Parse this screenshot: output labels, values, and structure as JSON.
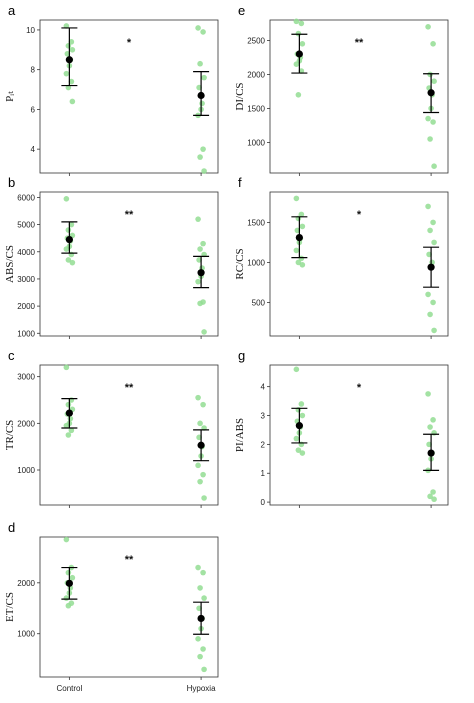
{
  "colors": {
    "point": "#93dd93",
    "mean": "#000000",
    "errorbar": "#000000",
    "frame": "#333333"
  },
  "chart_data": [
    {
      "type": "scatter",
      "panel": "a",
      "ylabel": "Pᵢₜ",
      "categories": [
        "Control",
        "Hypoxia"
      ],
      "ylim": [
        2.8,
        10.5
      ],
      "yticks": [
        4,
        6,
        8,
        10
      ],
      "significance": "*",
      "points": {
        "Control": [
          10.2,
          9.4,
          9.2,
          9.0,
          8.8,
          8.5,
          8.2,
          7.8,
          7.4,
          7.1,
          6.4
        ],
        "Hypoxia": [
          10.1,
          9.9,
          8.3,
          7.6,
          7.1,
          6.3,
          6.0,
          5.7,
          4.0,
          3.6,
          2.9
        ]
      },
      "mean": {
        "Control": 8.5,
        "Hypoxia": 6.7
      },
      "error": {
        "Control": [
          7.2,
          10.1
        ],
        "Hypoxia": [
          5.7,
          7.9
        ]
      }
    },
    {
      "type": "scatter",
      "panel": "b",
      "ylabel": "ABS/CS",
      "categories": [
        "Control",
        "Hypoxia"
      ],
      "ylim": [
        900,
        6200
      ],
      "yticks": [
        1000,
        2000,
        3000,
        4000,
        5000,
        6000
      ],
      "significance": "**",
      "points": {
        "Control": [
          5950,
          5000,
          4800,
          4600,
          4500,
          4400,
          4200,
          4100,
          3900,
          3700,
          3600
        ],
        "Hypoxia": [
          5200,
          4300,
          4100,
          3900,
          3700,
          3400,
          3100,
          2900,
          2150,
          2100,
          1050
        ]
      },
      "mean": {
        "Control": 4450,
        "Hypoxia": 3230
      },
      "error": {
        "Control": [
          3950,
          5100
        ],
        "Hypoxia": [
          2680,
          3830
        ]
      }
    },
    {
      "type": "scatter",
      "panel": "c",
      "ylabel": "TR/CS",
      "categories": [
        "Control",
        "Hypoxia"
      ],
      "ylim": [
        250,
        3250
      ],
      "yticks": [
        1000,
        2000,
        3000
      ],
      "significance": "**",
      "points": {
        "Control": [
          3200,
          2500,
          2400,
          2300,
          2200,
          2100,
          2000,
          1950,
          1850,
          1750
        ],
        "Hypoxia": [
          2550,
          2400,
          2000,
          1900,
          1700,
          1500,
          1300,
          1100,
          900,
          750,
          400
        ]
      },
      "mean": {
        "Control": 2220,
        "Hypoxia": 1530
      },
      "error": {
        "Control": [
          1900,
          2530
        ],
        "Hypoxia": [
          1200,
          1860
        ]
      }
    },
    {
      "type": "scatter",
      "panel": "d",
      "ylabel": "ET/CS",
      "categories": [
        "Control",
        "Hypoxia"
      ],
      "ylim": [
        150,
        2900
      ],
      "yticks": [
        1000,
        2000
      ],
      "significance": "**",
      "points": {
        "Control": [
          2850,
          2300,
          2200,
          2100,
          2000,
          1900,
          1800,
          1700,
          1600,
          1550
        ],
        "Hypoxia": [
          2300,
          2200,
          1900,
          1700,
          1500,
          1300,
          1100,
          900,
          700,
          550,
          300
        ]
      },
      "mean": {
        "Control": 1990,
        "Hypoxia": 1300
      },
      "error": {
        "Control": [
          1680,
          2300
        ],
        "Hypoxia": [
          990,
          1620
        ]
      }
    },
    {
      "type": "scatter",
      "panel": "e",
      "ylabel": "DI/CS",
      "categories": [
        "Control",
        "Hypoxia"
      ],
      "ylim": [
        550,
        2800
      ],
      "yticks": [
        1000,
        1500,
        2000,
        2500
      ],
      "significance": "**",
      "points": {
        "Control": [
          2780,
          2750,
          2600,
          2450,
          2300,
          2250,
          2200,
          2150,
          2050,
          1700
        ],
        "Hypoxia": [
          2700,
          2450,
          2000,
          1900,
          1800,
          1700,
          1500,
          1350,
          1300,
          1050,
          650
        ]
      },
      "mean": {
        "Control": 2300,
        "Hypoxia": 1730
      },
      "error": {
        "Control": [
          2020,
          2590
        ],
        "Hypoxia": [
          1440,
          2010
        ]
      }
    },
    {
      "type": "scatter",
      "panel": "f",
      "ylabel": "RC/CS",
      "categories": [
        "Control",
        "Hypoxia"
      ],
      "ylim": [
        80,
        1880
      ],
      "yticks": [
        500,
        1000,
        1500
      ],
      "significance": "*",
      "points": {
        "Control": [
          1800,
          1600,
          1550,
          1450,
          1400,
          1300,
          1250,
          1150,
          1050,
          1000,
          970
        ],
        "Hypoxia": [
          1700,
          1500,
          1400,
          1250,
          1100,
          1000,
          950,
          600,
          500,
          350,
          150
        ]
      },
      "mean": {
        "Control": 1310,
        "Hypoxia": 940
      },
      "error": {
        "Control": [
          1060,
          1570
        ],
        "Hypoxia": [
          690,
          1190
        ]
      }
    },
    {
      "type": "scatter",
      "panel": "g",
      "ylabel": "PI/ABS",
      "categories": [
        "Control",
        "Hypoxia"
      ],
      "ylim": [
        -0.1,
        4.75
      ],
      "yticks": [
        0,
        1,
        2,
        3,
        4
      ],
      "significance": "*",
      "points": {
        "Control": [
          4.6,
          3.4,
          3.2,
          3.0,
          2.8,
          2.6,
          2.4,
          2.2,
          2.0,
          1.8,
          1.7
        ],
        "Hypoxia": [
          3.75,
          2.85,
          2.6,
          2.4,
          2.0,
          1.7,
          1.5,
          1.1,
          0.35,
          0.2,
          0.1
        ]
      },
      "mean": {
        "Control": 2.65,
        "Hypoxia": 1.7
      },
      "error": {
        "Control": [
          2.05,
          3.25
        ],
        "Hypoxia": [
          1.1,
          2.35
        ]
      }
    }
  ]
}
